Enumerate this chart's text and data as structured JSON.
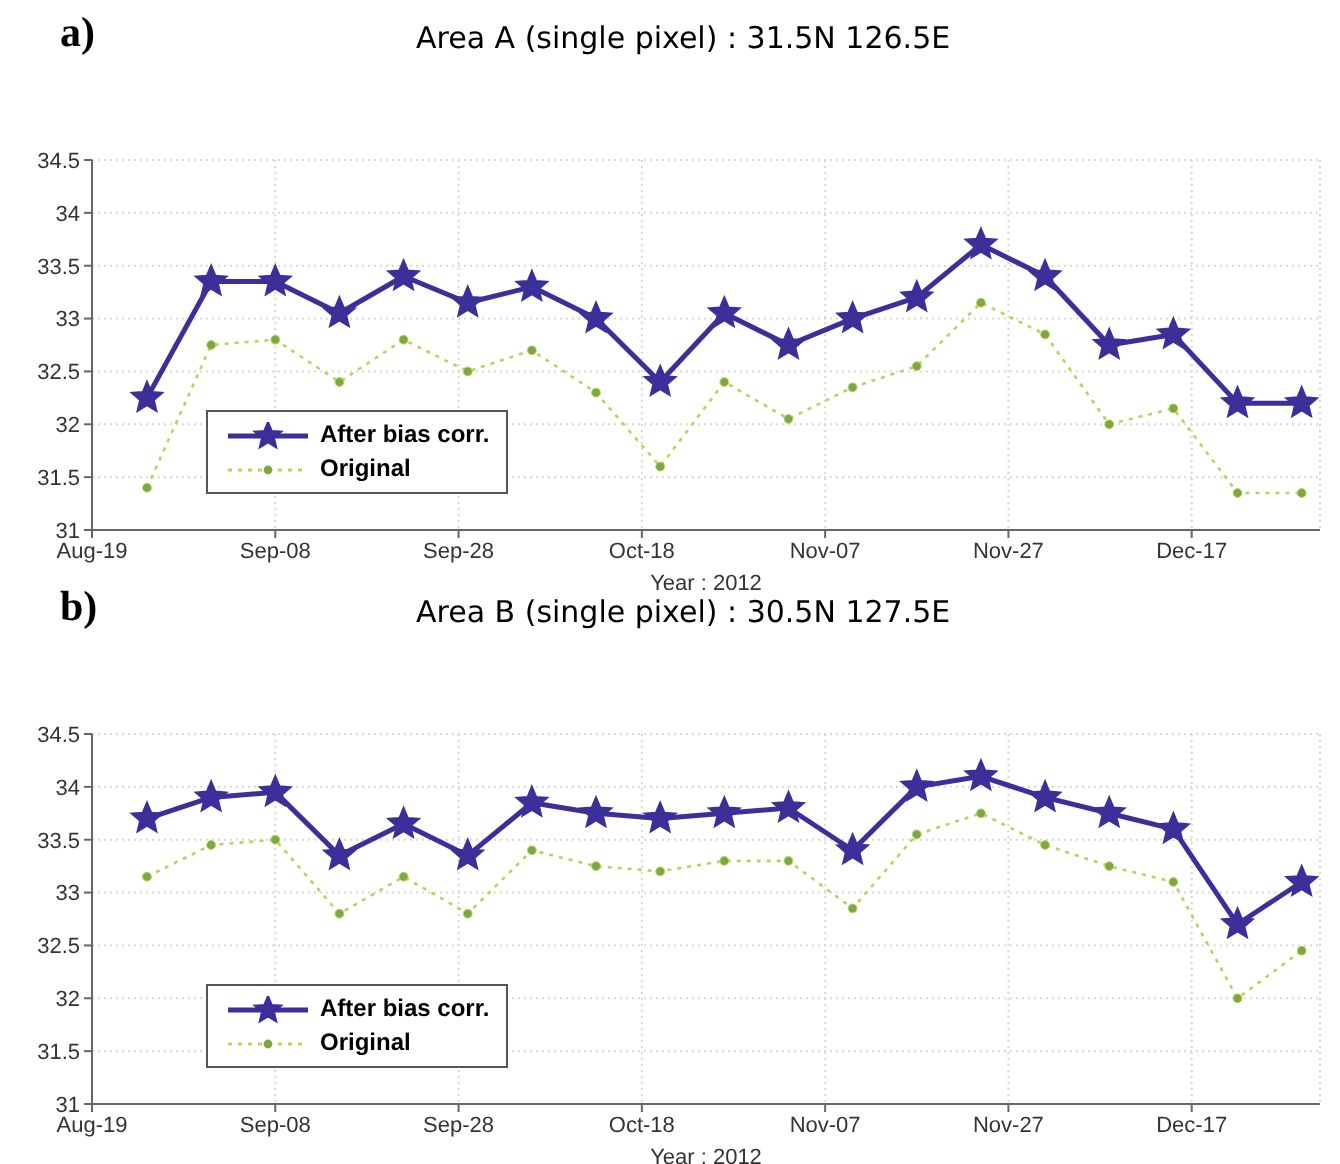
{
  "chart_data": [
    {
      "type": "line",
      "title": "Area A (single pixel) : 31.5N 126.5E",
      "xlabel": "Year : 2012",
      "annotations": [
        "a)"
      ],
      "x": [
        "2012-08-25",
        "2012-09-01",
        "2012-09-08",
        "2012-09-15",
        "2012-09-22",
        "2012-09-29",
        "2012-10-06",
        "2012-10-13",
        "2012-10-20",
        "2012-10-27",
        "2012-11-03",
        "2012-11-10",
        "2012-11-17",
        "2012-11-24",
        "2012-12-01",
        "2012-12-08",
        "2012-12-15",
        "2012-12-22",
        "2012-12-29"
      ],
      "series": [
        {
          "name": "After bias corr.",
          "color": "#3b2f9a",
          "marker": "star",
          "line_style": "solid",
          "values": [
            32.25,
            33.35,
            33.35,
            33.05,
            33.4,
            33.15,
            33.3,
            33.0,
            32.4,
            33.05,
            32.75,
            33.0,
            33.2,
            33.7,
            33.4,
            32.75,
            32.85,
            32.2,
            32.2
          ]
        },
        {
          "name": "Original",
          "color": "#b8d35c",
          "marker": "circle",
          "line_style": "dotted",
          "values": [
            31.4,
            32.75,
            32.8,
            32.4,
            32.8,
            32.5,
            32.7,
            32.3,
            31.6,
            32.4,
            32.05,
            32.35,
            32.55,
            33.15,
            32.85,
            32.0,
            32.15,
            31.35,
            31.35
          ]
        }
      ],
      "xlim": [
        "2012-08-19",
        "2012-12-31"
      ],
      "xticks": [
        {
          "value": "2012-08-19",
          "label": "Aug-19"
        },
        {
          "value": "2012-09-08",
          "label": "Sep-08"
        },
        {
          "value": "2012-09-28",
          "label": "Sep-28"
        },
        {
          "value": "2012-10-18",
          "label": "Oct-18"
        },
        {
          "value": "2012-11-07",
          "label": "Nov-07"
        },
        {
          "value": "2012-11-27",
          "label": "Nov-27"
        },
        {
          "value": "2012-12-17",
          "label": "Dec-17"
        }
      ],
      "ylim": [
        31,
        34.5
      ],
      "yticks": [
        31,
        31.5,
        32,
        32.5,
        33,
        33.5,
        34,
        34.5
      ],
      "grid": true,
      "legend": "bottom left"
    },
    {
      "type": "line",
      "title": "Area B (single pixel) : 30.5N 127.5E",
      "xlabel": "Year : 2012",
      "annotations": [
        "b)"
      ],
      "x": [
        "2012-08-25",
        "2012-09-01",
        "2012-09-08",
        "2012-09-15",
        "2012-09-22",
        "2012-09-29",
        "2012-10-06",
        "2012-10-13",
        "2012-10-20",
        "2012-10-27",
        "2012-11-03",
        "2012-11-10",
        "2012-11-17",
        "2012-11-24",
        "2012-12-01",
        "2012-12-08",
        "2012-12-15",
        "2012-12-22",
        "2012-12-29"
      ],
      "series": [
        {
          "name": "After bias corr.",
          "color": "#3b2f9a",
          "marker": "star",
          "line_style": "solid",
          "values": [
            33.7,
            33.9,
            33.95,
            33.35,
            33.65,
            33.35,
            33.85,
            33.75,
            33.7,
            33.75,
            33.8,
            33.4,
            34.0,
            34.1,
            33.9,
            33.75,
            33.6,
            32.7,
            33.1
          ]
        },
        {
          "name": "Original",
          "color": "#b8d35c",
          "marker": "circle",
          "line_style": "dotted",
          "values": [
            33.15,
            33.45,
            33.5,
            32.8,
            33.15,
            32.8,
            33.4,
            33.25,
            33.2,
            33.3,
            33.3,
            32.85,
            33.55,
            33.75,
            33.45,
            33.25,
            33.1,
            32.0,
            32.45
          ]
        }
      ],
      "xlim": [
        "2012-08-19",
        "2012-12-31"
      ],
      "xticks": [
        {
          "value": "2012-08-19",
          "label": "Aug-19"
        },
        {
          "value": "2012-09-08",
          "label": "Sep-08"
        },
        {
          "value": "2012-09-28",
          "label": "Sep-28"
        },
        {
          "value": "2012-10-18",
          "label": "Oct-18"
        },
        {
          "value": "2012-11-07",
          "label": "Nov-07"
        },
        {
          "value": "2012-11-27",
          "label": "Nov-27"
        },
        {
          "value": "2012-12-17",
          "label": "Dec-17"
        }
      ],
      "ylim": [
        31,
        34.5
      ],
      "yticks": [
        31,
        31.5,
        32,
        32.5,
        33,
        33.5,
        34,
        34.5
      ],
      "grid": true,
      "legend": "bottom left"
    }
  ]
}
